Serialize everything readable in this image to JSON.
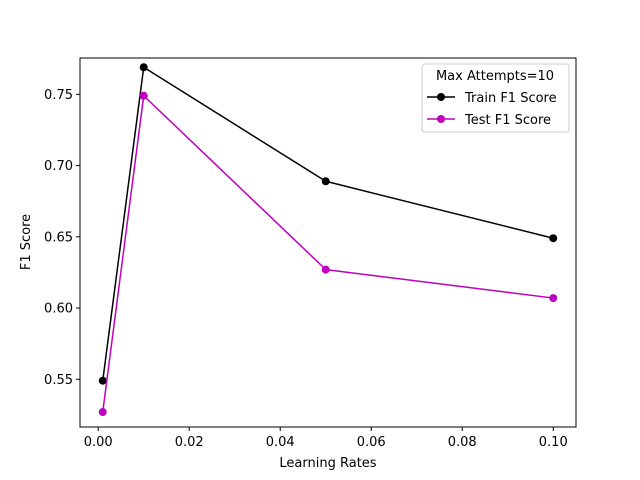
{
  "chart_data": {
    "type": "line",
    "title": "",
    "xlabel": "Learning Rates",
    "ylabel": "F1 Score",
    "x": [
      0.001,
      0.01,
      0.05,
      0.1
    ],
    "xlim": [
      -0.004,
      0.105
    ],
    "ylim": [
      0.5165,
      0.7755
    ],
    "xticks": [
      0.0,
      0.02,
      0.04,
      0.06,
      0.08,
      0.1
    ],
    "xtick_labels": [
      "0.00",
      "0.02",
      "0.04",
      "0.06",
      "0.08",
      "0.10"
    ],
    "yticks": [
      0.55,
      0.6,
      0.65,
      0.7,
      0.75
    ],
    "ytick_labels": [
      "0.55",
      "0.60",
      "0.65",
      "0.70",
      "0.75"
    ],
    "grid": false,
    "legend": {
      "title": "Max Attempts=10",
      "placement": "top-right"
    },
    "series": [
      {
        "name": "Train F1 Score",
        "color": "#000000",
        "marker": "circle",
        "values": [
          0.549,
          0.769,
          0.689,
          0.649
        ]
      },
      {
        "name": "Test F1 Score",
        "color": "#bf00bf",
        "marker": "circle",
        "values": [
          0.527,
          0.749,
          0.627,
          0.607
        ]
      }
    ]
  }
}
